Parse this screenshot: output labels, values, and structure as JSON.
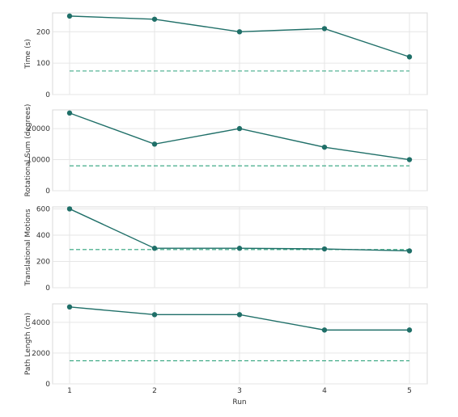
{
  "chart_data": {
    "type": "line",
    "x": [
      1,
      2,
      3,
      4,
      5
    ],
    "xlabel": "Run",
    "xticks": [
      "1",
      "2",
      "3",
      "4",
      "5"
    ],
    "grid": true,
    "colors": {
      "series": "#1f6f68",
      "reference": "#2ea27c",
      "grid": "#e6e6e6",
      "frame": "#d8d8d8"
    },
    "panels": [
      {
        "ylabel": "Time (s)",
        "yticks": [
          "0",
          "100",
          "200"
        ],
        "ylim": [
          0,
          260
        ],
        "values": [
          250,
          240,
          200,
          210,
          120
        ],
        "reference": 75
      },
      {
        "ylabel": "Rotational Sum (degrees)",
        "yticks": [
          "0",
          "10000",
          "20000"
        ],
        "ylim": [
          0,
          26000
        ],
        "values": [
          25000,
          15000,
          20000,
          14000,
          10000
        ],
        "reference": 8000
      },
      {
        "ylabel": "Translational Motions",
        "yticks": [
          "0",
          "200",
          "400",
          "600"
        ],
        "ylim": [
          0,
          615
        ],
        "values": [
          600,
          300,
          300,
          295,
          280
        ],
        "reference": 290
      },
      {
        "ylabel": "Path Length (cm)",
        "yticks": [
          "0",
          "2000",
          "4000"
        ],
        "ylim": [
          0,
          5200
        ],
        "values": [
          5000,
          4500,
          4500,
          3500,
          3500
        ],
        "reference": 1500
      }
    ]
  }
}
